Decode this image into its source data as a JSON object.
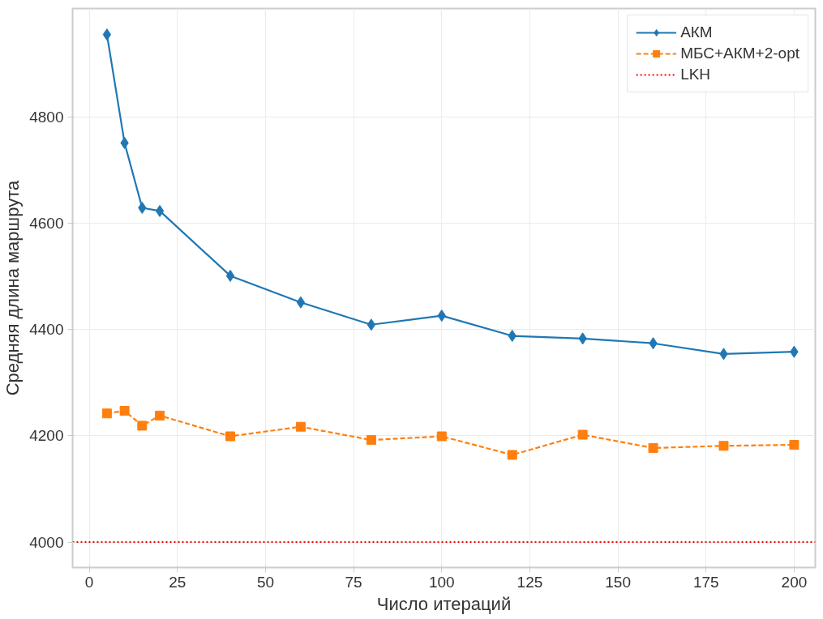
{
  "chart_data": {
    "type": "line",
    "xlabel": "Число итераций",
    "ylabel": "Средняя длина маршрута",
    "x": [
      5,
      10,
      15,
      20,
      40,
      60,
      80,
      100,
      120,
      140,
      160,
      180,
      200
    ],
    "series": [
      {
        "name": "АКМ",
        "color": "#1f77b4",
        "marker": "diamond",
        "line_style": "solid",
        "values": [
          4955,
          4751,
          4629,
          4623,
          4501,
          4451,
          4409,
          4426,
          4388,
          4383,
          4374,
          4354,
          4358
        ]
      },
      {
        "name": "МБС+АКМ+2-opt",
        "color": "#ff7f0e",
        "marker": "square",
        "line_style": "dashed",
        "values": [
          4242,
          4247,
          4219,
          4238,
          4199,
          4217,
          4192,
          4199,
          4164,
          4202,
          4177,
          4181,
          4183
        ]
      }
    ],
    "ref_lines": [
      {
        "axis": "y",
        "value": 4000,
        "label": "LKH",
        "color": "#ff0000",
        "line_style": "dotted"
      }
    ],
    "xlim": [
      -4.75,
      206
    ],
    "ylim": [
      3952,
      5004
    ],
    "xticks": [
      0,
      25,
      50,
      75,
      100,
      125,
      150,
      175,
      200
    ],
    "yticks": [
      4000,
      4200,
      4400,
      4600,
      4800
    ],
    "grid": true,
    "legend": "top right"
  }
}
